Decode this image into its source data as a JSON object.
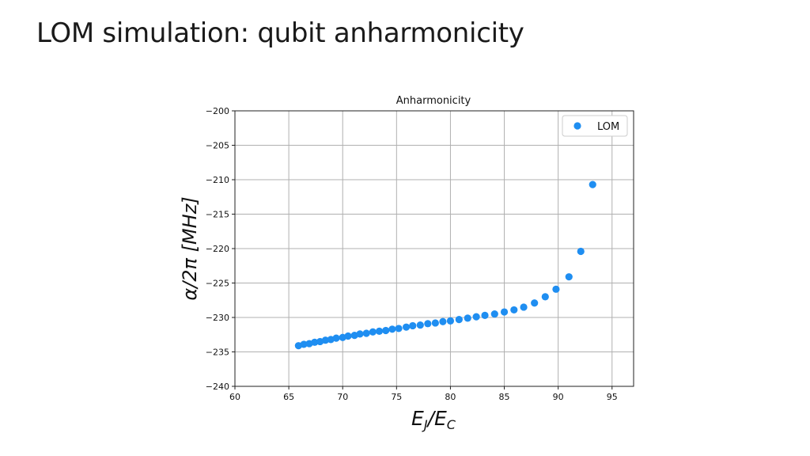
{
  "slide": {
    "title": "LOM simulation: qubit anharmonicity"
  },
  "chart_data": {
    "type": "scatter",
    "title": "Anharmonicity",
    "xlabel": "E_J/E_C",
    "ylabel": "α/2π [MHz]",
    "xlim": [
      60,
      97
    ],
    "ylim": [
      -240,
      -200
    ],
    "x_ticks": [
      "60",
      "65",
      "70",
      "75",
      "80",
      "85",
      "90",
      "95"
    ],
    "y_ticks": [
      "−200",
      "−205",
      "−210",
      "−215",
      "−220",
      "−225",
      "−230",
      "−235",
      "−240"
    ],
    "grid": true,
    "legend_position": "top-right",
    "series_color": "#1f8ef1",
    "series": [
      {
        "name": "LOM",
        "x": [
          65.9,
          66.4,
          66.9,
          67.4,
          67.9,
          68.4,
          68.9,
          69.4,
          70.0,
          70.5,
          71.1,
          71.6,
          72.2,
          72.8,
          73.4,
          74.0,
          74.6,
          75.2,
          75.9,
          76.5,
          77.2,
          77.9,
          78.6,
          79.3,
          80.0,
          80.8,
          81.6,
          82.4,
          83.2,
          84.1,
          85.0,
          85.9,
          86.8,
          87.8,
          88.8,
          89.8,
          91.0,
          92.1,
          93.2
        ],
        "y": [
          -234.1,
          -233.9,
          -233.8,
          -233.6,
          -233.5,
          -233.3,
          -233.2,
          -233.0,
          -232.9,
          -232.7,
          -232.6,
          -232.4,
          -232.3,
          -232.1,
          -232.0,
          -231.9,
          -231.7,
          -231.6,
          -231.4,
          -231.2,
          -231.1,
          -230.9,
          -230.8,
          -230.6,
          -230.5,
          -230.3,
          -230.1,
          -229.9,
          -229.7,
          -229.5,
          -229.2,
          -228.9,
          -228.5,
          -227.9,
          -227.0,
          -225.9,
          -224.1,
          -220.4,
          -210.7
        ]
      }
    ]
  }
}
